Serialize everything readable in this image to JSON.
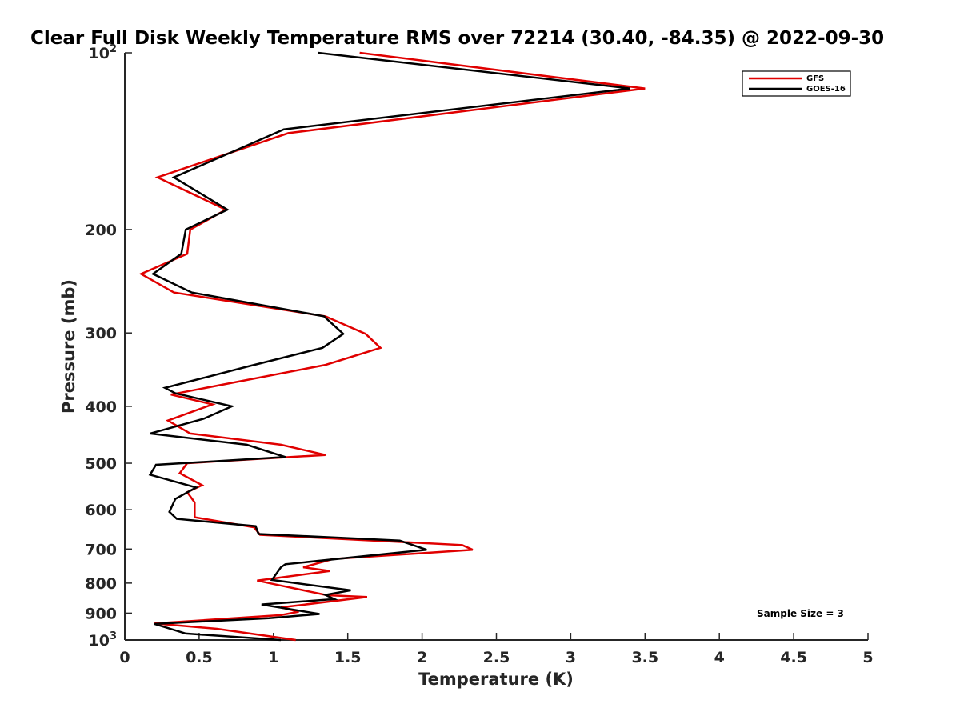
{
  "chart_data": {
    "type": "line",
    "title": "Clear Full Disk Weekly Temperature RMS over 72214 (30.40, -84.35) @ 2022-09-30",
    "xlabel": "Temperature (K)",
    "ylabel": "Pressure (mb)",
    "xlim": [
      0,
      5
    ],
    "ylim": [
      100,
      1000
    ],
    "y_scale": "log",
    "y_reversed": true,
    "x_ticks": [
      "0",
      "0.5",
      "1",
      "1.5",
      "2",
      "2.5",
      "3",
      "3.5",
      "4",
      "4.5",
      "5"
    ],
    "y_ticks": [
      {
        "value": 100,
        "label": "10",
        "sup": "2"
      },
      {
        "value": 200,
        "label": "200",
        "sup": ""
      },
      {
        "value": 300,
        "label": "300",
        "sup": ""
      },
      {
        "value": 400,
        "label": "400",
        "sup": ""
      },
      {
        "value": 500,
        "label": "500",
        "sup": ""
      },
      {
        "value": 600,
        "label": "600",
        "sup": ""
      },
      {
        "value": 700,
        "label": "700",
        "sup": ""
      },
      {
        "value": 800,
        "label": "800",
        "sup": ""
      },
      {
        "value": 900,
        "label": "900",
        "sup": ""
      },
      {
        "value": 1000,
        "label": "10",
        "sup": "3"
      }
    ],
    "grid": false,
    "legend_position": "top-right",
    "annotation": "Sample Size = 3",
    "series": [
      {
        "name": "GFS",
        "color": "#e00000",
        "points": [
          [
            1.58,
            100
          ],
          [
            3.5,
            115
          ],
          [
            1.1,
            137
          ],
          [
            0.22,
            163
          ],
          [
            0.68,
            185
          ],
          [
            0.44,
            200
          ],
          [
            0.42,
            220
          ],
          [
            0.11,
            238
          ],
          [
            0.33,
            256
          ],
          [
            1.35,
            281
          ],
          [
            1.62,
            301
          ],
          [
            1.72,
            318
          ],
          [
            1.35,
            340
          ],
          [
            0.31,
            382
          ],
          [
            0.59,
            397
          ],
          [
            0.29,
            423
          ],
          [
            0.44,
            445
          ],
          [
            1.05,
            465
          ],
          [
            1.35,
            484
          ],
          [
            0.42,
            500
          ],
          [
            0.37,
            520
          ],
          [
            0.52,
            545
          ],
          [
            0.42,
            560
          ],
          [
            0.47,
            583
          ],
          [
            0.47,
            618
          ],
          [
            0.87,
            643
          ],
          [
            0.91,
            662
          ],
          [
            2.27,
            689
          ],
          [
            2.34,
            702
          ],
          [
            1.4,
            728
          ],
          [
            1.2,
            752
          ],
          [
            1.38,
            763
          ],
          [
            0.89,
            792
          ],
          [
            1.03,
            806
          ],
          [
            1.36,
            839
          ],
          [
            1.63,
            845
          ],
          [
            1.05,
            880
          ],
          [
            1.17,
            895
          ],
          [
            1.05,
            907
          ],
          [
            0.2,
            937
          ],
          [
            0.62,
            957
          ],
          [
            1.15,
            1000
          ]
        ]
      },
      {
        "name": "GOES-16",
        "color": "#000000",
        "points": [
          [
            1.3,
            100
          ],
          [
            3.4,
            115
          ],
          [
            1.07,
            135
          ],
          [
            0.33,
            163
          ],
          [
            0.69,
            185
          ],
          [
            0.41,
            200
          ],
          [
            0.38,
            220
          ],
          [
            0.19,
            238
          ],
          [
            0.45,
            256
          ],
          [
            1.34,
            281
          ],
          [
            1.47,
            301
          ],
          [
            1.33,
            318
          ],
          [
            0.83,
            342
          ],
          [
            0.27,
            372
          ],
          [
            0.34,
            380
          ],
          [
            0.72,
            400
          ],
          [
            0.53,
            420
          ],
          [
            0.17,
            445
          ],
          [
            0.82,
            465
          ],
          [
            1.08,
            488
          ],
          [
            0.21,
            503
          ],
          [
            0.17,
            523
          ],
          [
            0.48,
            550
          ],
          [
            0.34,
            575
          ],
          [
            0.3,
            605
          ],
          [
            0.35,
            622
          ],
          [
            0.88,
            640
          ],
          [
            0.9,
            660
          ],
          [
            1.85,
            677
          ],
          [
            2.03,
            702
          ],
          [
            1.08,
            743
          ],
          [
            1.05,
            752
          ],
          [
            0.99,
            790
          ],
          [
            1.52,
            823
          ],
          [
            1.35,
            838
          ],
          [
            1.41,
            852
          ],
          [
            0.92,
            870
          ],
          [
            1.31,
            903
          ],
          [
            0.97,
            918
          ],
          [
            0.2,
            939
          ],
          [
            0.41,
            975
          ],
          [
            1.05,
            1000
          ]
        ]
      }
    ]
  }
}
